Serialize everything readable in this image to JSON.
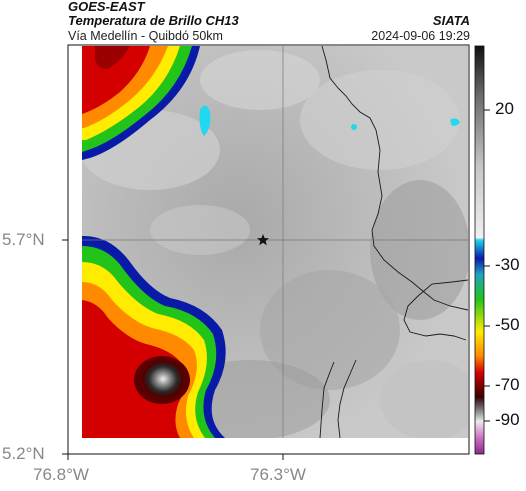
{
  "header": {
    "satellite": "GOES-EAST",
    "product": "Temperatura de Brillo CH13",
    "route": "Vía Medellín - Quibdó 50km",
    "organization": "SIATA",
    "timestamp": "2024-09-06 19:29"
  },
  "axes": {
    "lat_labels": [
      "5.7°N",
      "5.2°N"
    ],
    "lon_labels": [
      "76.8°W",
      "76.3°W"
    ]
  },
  "colorbar": {
    "labels": [
      "20",
      "-30",
      "-50",
      "-70",
      "-90"
    ]
  },
  "colors": {
    "background_clear": "#b8b8b8",
    "cold_red": "#d40000",
    "cold_green": "#22c41a",
    "cold_yellow": "#ffec00",
    "cold_blue": "#0a1aa8",
    "cyan": "#22d8ee",
    "coldest_core": "#1a1a1a"
  },
  "marker": {
    "icon": "star-icon"
  }
}
